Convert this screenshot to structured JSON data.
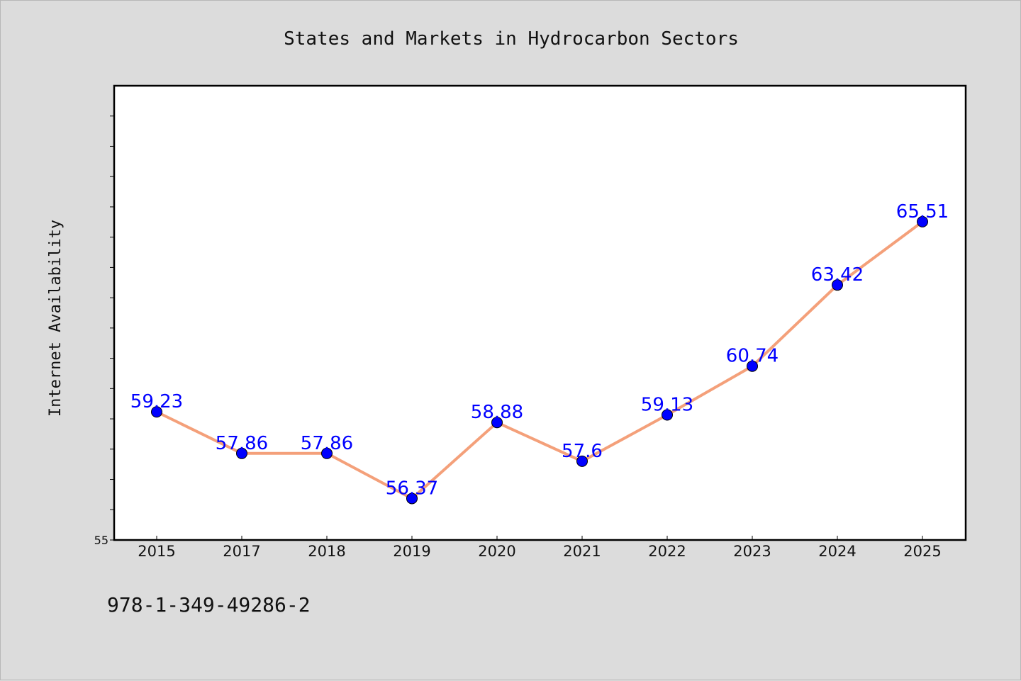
{
  "chart_data": {
    "type": "line",
    "title": "States and Markets in Hydrocarbon Sectors",
    "ylabel": "Internet Availability",
    "xlabel": "",
    "categories": [
      "2015",
      "2017",
      "2018",
      "2019",
      "2020",
      "2021",
      "2022",
      "2023",
      "2024",
      "2025"
    ],
    "series": [
      {
        "values": [
          59.23,
          57.86,
          57.86,
          56.37,
          58.88,
          57.6,
          59.13,
          60.74,
          63.42,
          65.51
        ],
        "labels": [
          "59.23",
          "57.86",
          "57.86",
          "56.37",
          "58.88",
          "57.6",
          "59.13",
          "60.74",
          "63.42",
          "65.51"
        ],
        "line_color": "#f4a07a",
        "marker_color": "#0000ff"
      }
    ],
    "ylim": [
      55,
      70
    ],
    "yticks_labeled": [
      "55"
    ],
    "ytick_step": 1,
    "grid": false,
    "legend": "none"
  },
  "footer": {
    "isbn": "978-1-349-49286-2"
  },
  "colors": {
    "background": "#dcdcdc",
    "plot_background": "#ffffff",
    "axis": "#000000",
    "data_label": "#0000ff"
  }
}
